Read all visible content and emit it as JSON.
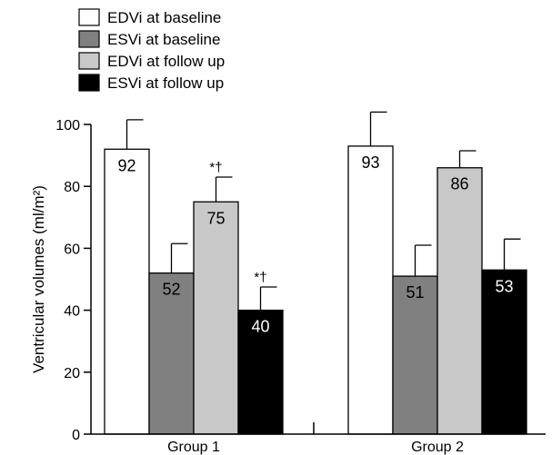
{
  "chart_data": {
    "type": "bar",
    "ylabel": "Ventricular volumes (ml/m²)",
    "ylim": [
      0,
      100
    ],
    "yticks": [
      0,
      20,
      40,
      60,
      80,
      100
    ],
    "categories": [
      "Group 1",
      "Group 2"
    ],
    "series": [
      {
        "name": "EDVi at baseline",
        "color": "#ffffff",
        "values": [
          92,
          93
        ],
        "errors": [
          9.5,
          11
        ],
        "annotations": [
          "",
          ""
        ],
        "label_color": "#000000"
      },
      {
        "name": "ESVi at baseline",
        "color": "#808080",
        "values": [
          52,
          51
        ],
        "errors": [
          9.5,
          10
        ],
        "annotations": [
          "",
          ""
        ],
        "label_color": "#000000"
      },
      {
        "name": "EDVi at follow up",
        "color": "#c8c8c8",
        "values": [
          75,
          86
        ],
        "errors": [
          8,
          5.5
        ],
        "annotations": [
          "*†",
          ""
        ],
        "label_color": "#000000"
      },
      {
        "name": "ESVi at follow up",
        "color": "#000000",
        "values": [
          40,
          53
        ],
        "errors": [
          7.5,
          10
        ],
        "annotations": [
          "*†",
          ""
        ],
        "label_color": "#ffffff"
      }
    ],
    "legend_position": "top-left",
    "grid": false
  }
}
